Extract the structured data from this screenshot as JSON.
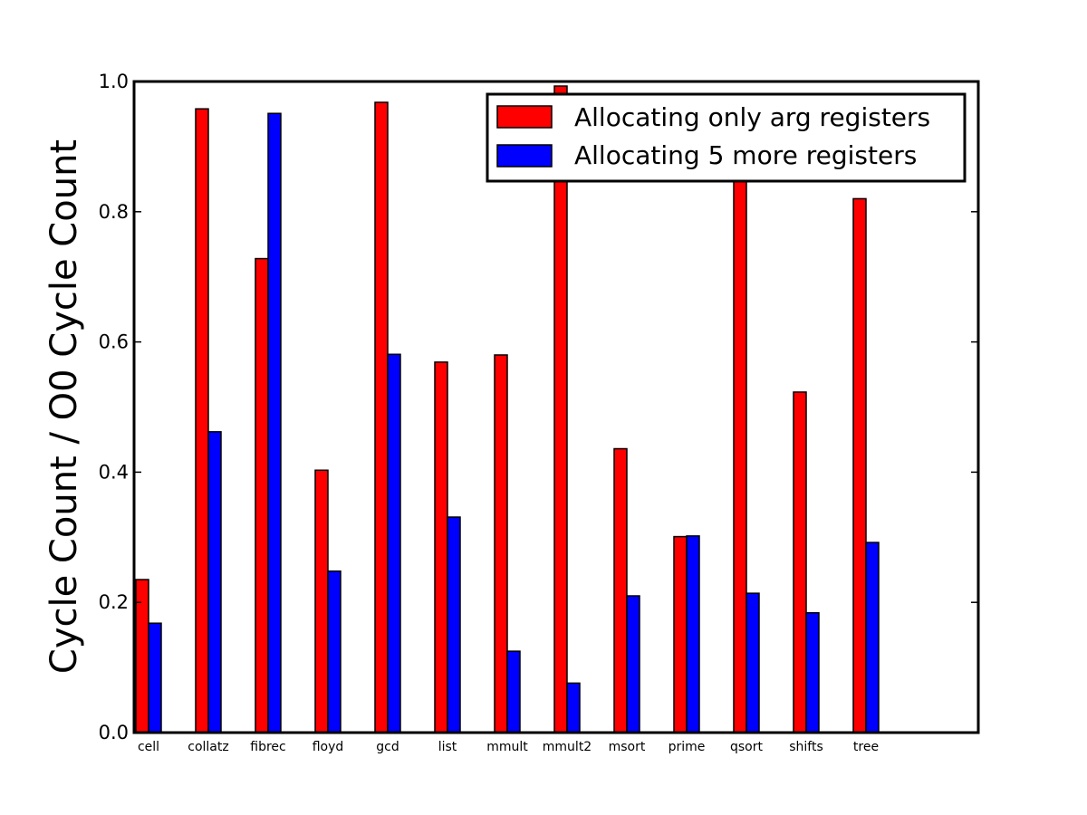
{
  "chart_data": {
    "type": "bar",
    "title": "",
    "xlabel": "",
    "ylabel": "Cycle Count / O0 Cycle Count",
    "ylim": [
      0.0,
      1.0
    ],
    "yticks": [
      "0.0",
      "0.2",
      "0.4",
      "0.6",
      "0.8",
      "1.0"
    ],
    "grid": false,
    "legend_position": "top-right",
    "categories": [
      "cell",
      "collatz",
      "fibrec",
      "floyd",
      "gcd",
      "list",
      "mmult",
      "mmult2",
      "msort",
      "prime",
      "qsort",
      "shifts",
      "tree"
    ],
    "series": [
      {
        "name": "Allocating only arg registers",
        "color": "#ff0000",
        "values": [
          0.235,
          0.958,
          0.728,
          0.403,
          0.968,
          0.569,
          0.58,
          0.993,
          0.436,
          0.301,
          0.885,
          0.523,
          0.82
        ]
      },
      {
        "name": "Allocating 5 more registers",
        "color": "#0000ff",
        "values": [
          0.168,
          0.462,
          0.951,
          0.248,
          0.581,
          0.331,
          0.125,
          0.076,
          0.21,
          0.302,
          0.214,
          0.184,
          0.292
        ]
      }
    ]
  }
}
